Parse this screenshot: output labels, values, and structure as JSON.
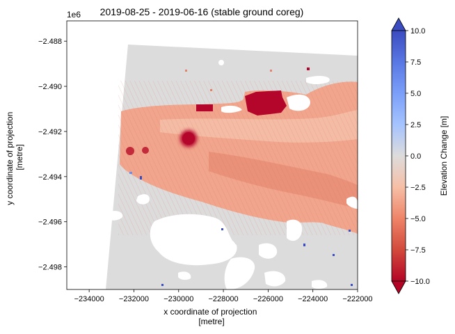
{
  "chart_data": {
    "type": "heatmap",
    "title": "2019-08-25 - 2019-06-16 (stable ground coreg)",
    "xlabel_lines": [
      "x coordinate of projection",
      "[metre]"
    ],
    "ylabel_lines": [
      "y coordinate of projection",
      "[metre]"
    ],
    "y_offset_label": "1e6",
    "xlim": [
      -235000,
      -222000
    ],
    "ylim": [
      -2.499,
      -2.4871
    ],
    "xticks": [
      -234000,
      -232000,
      -230000,
      -228000,
      -226000,
      -224000,
      -222000
    ],
    "xtick_labels": [
      "−234000",
      "−232000",
      "−230000",
      "−228000",
      "−226000",
      "−224000",
      "−222000"
    ],
    "yticks": [
      -2.488,
      -2.49,
      -2.492,
      -2.494,
      -2.496,
      -2.498
    ],
    "ytick_labels": [
      "−2.488",
      "−2.490",
      "−2.492",
      "−2.494",
      "−2.496",
      "−2.498"
    ],
    "colorbar": {
      "label": "Elevation Change [m]",
      "colormap": "coolwarm_r",
      "range": [
        -10,
        10
      ],
      "extend": "both",
      "ticks": [
        10,
        7.5,
        5,
        2.5,
        0,
        -2.5,
        -5,
        -7.5,
        -10
      ],
      "tick_labels": [
        "10.0",
        "7.5",
        "5.0",
        "2.5",
        "0.0",
        "−2.5",
        "−5.0",
        "−7.5",
        "−10.0"
      ]
    },
    "dominant_values": {
      "stable_ground": 0,
      "glacier_surface": -3.5,
      "saturated_patches": -10
    }
  },
  "colors": {
    "stable": "#dcdcdc",
    "glacier": "#f0a58c",
    "glacier_light": "#f6c4ae",
    "glacier_dark": "#e4826a",
    "low_extreme": "#b4052a",
    "high_extreme": "#3a4cc0"
  }
}
